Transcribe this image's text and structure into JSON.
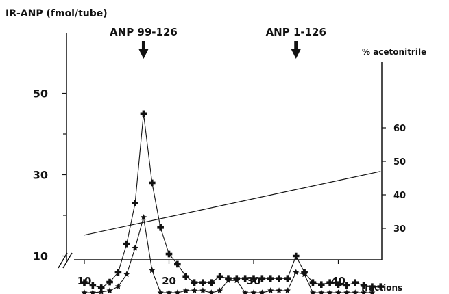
{
  "chart_data": {
    "type": "line",
    "ylabel_left": "IR-ANP (fmol/tube)",
    "ylabel_right": "% acetonitrile",
    "xlabel": "fractions",
    "xlim": [
      10,
      45
    ],
    "x_ticks": [
      10,
      20,
      30,
      40
    ],
    "y_left_ticks": [
      10,
      30,
      50
    ],
    "y_left_minor_ticks": [
      20,
      40
    ],
    "y_right_ticks": [
      30,
      40,
      50,
      60
    ],
    "annotations": [
      {
        "text": "ANP 99-126",
        "x": 17
      },
      {
        "text": "ANP 1-126",
        "x": 35
      }
    ],
    "series": [
      {
        "marker": "cross",
        "x": [
          10,
          11,
          12,
          13,
          14,
          15,
          16,
          17,
          18,
          19,
          20,
          21,
          22,
          23,
          24,
          25,
          26,
          27,
          28,
          29,
          30,
          31,
          32,
          33,
          34,
          35,
          36,
          37,
          38,
          39,
          40,
          41,
          42,
          43,
          44,
          45
        ],
        "y": [
          3.5,
          2.8,
          2.2,
          3.6,
          6,
          13,
          23,
          45,
          28,
          17,
          10.5,
          8,
          5,
          3.5,
          3.5,
          3.5,
          5,
          4.5,
          4.5,
          4.5,
          4.5,
          4.5,
          4.5,
          4.5,
          4.5,
          10,
          6,
          3.5,
          3,
          3.5,
          3,
          2.8,
          3.5,
          2.8,
          2.5,
          2.5
        ]
      },
      {
        "marker": "star",
        "x": [
          10,
          11,
          12,
          13,
          14,
          15,
          16,
          17,
          18,
          19,
          20,
          21,
          22,
          23,
          24,
          25,
          26,
          27,
          28,
          29,
          30,
          31,
          32,
          33,
          34,
          35,
          36,
          37,
          38,
          39,
          40,
          41,
          42,
          43,
          44
        ],
        "y": [
          1,
          1,
          1.2,
          1.5,
          2.5,
          5.5,
          12,
          19.5,
          6.5,
          1,
          1,
          1,
          1.5,
          1.5,
          1.5,
          1,
          1.5,
          4,
          4,
          1,
          1,
          1,
          1.5,
          1.5,
          1.5,
          6,
          5.5,
          1,
          1,
          1,
          1,
          1,
          1,
          1,
          1
        ]
      }
    ],
    "gradient": {
      "axis": "right",
      "x": [
        10,
        45
      ],
      "y": [
        28,
        47
      ]
    }
  }
}
